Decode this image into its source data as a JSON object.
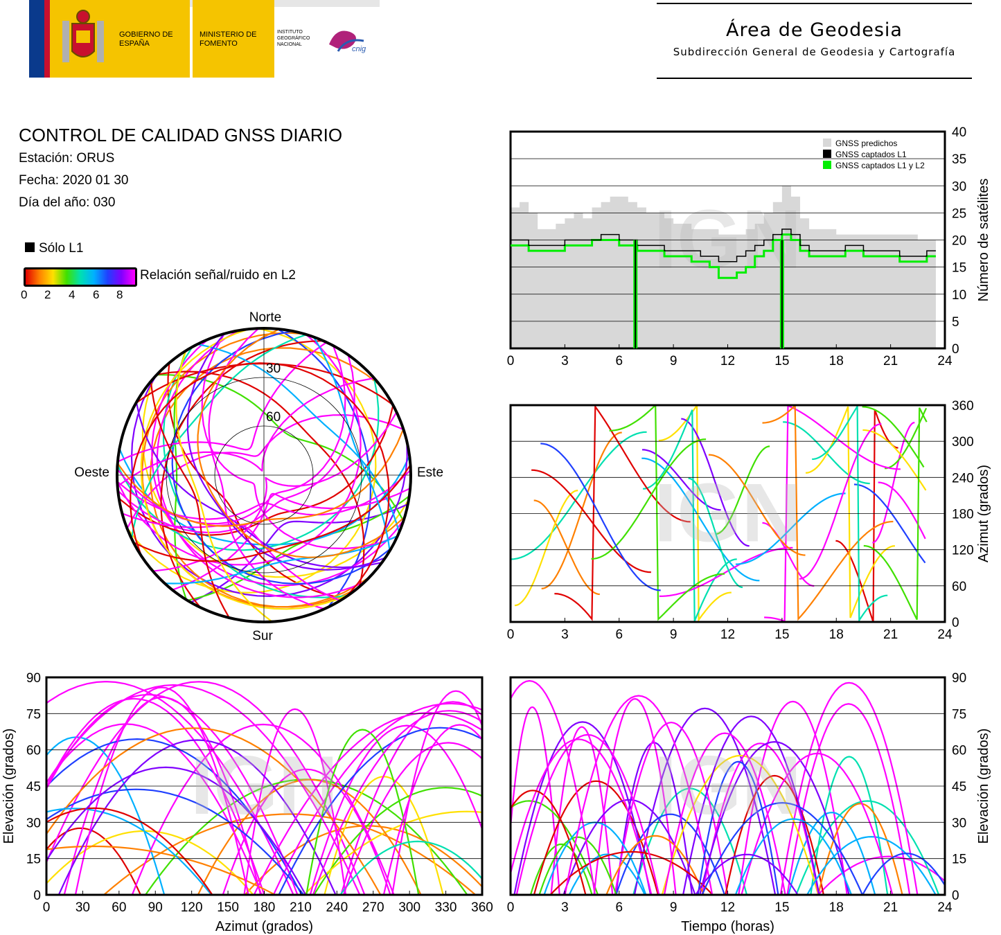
{
  "header": {
    "logo_gobierno": "GOBIERNO DE ESPAÑA",
    "logo_ministerio": "MINISTERIO DE FOMENTO",
    "logo_ign": "INSTITUTO GEOGRÁFICO NACIONAL",
    "logo_cnig": "cnig",
    "title": "Área de Geodesia",
    "subtitle": "Subdirección General de Geodesia y Cartografía"
  },
  "info": {
    "title": "CONTROL DE CALIDAD GNSS DIARIO",
    "station": "Estación: ORUS",
    "date": "Fecha: 2020 01 30",
    "doy": "Día del año: 030"
  },
  "legend": {
    "l1_only": "Sólo L1",
    "snr_label": "Relación señal/ruido en L2",
    "snr_ticks": [
      "0",
      "2",
      "4",
      "6",
      "8"
    ]
  },
  "watermark": "IGN",
  "colors": {
    "predicted": "#d8d8d8",
    "l1": "#000000",
    "l1l2": "#00ee00",
    "snr_scale": [
      "#e00000",
      "#ff8000",
      "#ffe000",
      "#40e000",
      "#00e0b0",
      "#00b0ff",
      "#2040ff",
      "#8000ff",
      "#ff00ff"
    ]
  },
  "chart_data": [
    {
      "type": "polar-scatter",
      "name": "skyplot",
      "directions": {
        "north": "Norte",
        "south": "Sur",
        "east": "Este",
        "west": "Oeste"
      },
      "elevation_rings": [
        "30",
        "60"
      ]
    },
    {
      "type": "area",
      "name": "satellite-count",
      "ylabel": "Número de satélites",
      "xlim": [
        0,
        24
      ],
      "ylim": [
        0,
        40
      ],
      "xticks": [
        "0",
        "3",
        "6",
        "9",
        "12",
        "15",
        "18",
        "21",
        "24"
      ],
      "yticks": [
        "0",
        "5",
        "10",
        "15",
        "20",
        "25",
        "30",
        "35",
        "40"
      ],
      "legend": [
        "GNSS predichos",
        "GNSS captados L1",
        "GNSS captados L1 y L2"
      ],
      "legend_position": "top-right",
      "x": [
        0,
        0.5,
        1,
        1.5,
        2,
        2.5,
        3,
        3.5,
        4,
        4.5,
        5,
        5.5,
        6,
        6.5,
        7,
        7.5,
        8,
        8.5,
        9,
        9.5,
        10,
        10.5,
        11,
        11.5,
        12,
        12.5,
        13,
        13.5,
        14,
        14.5,
        15,
        15.5,
        16,
        16.5,
        17,
        17.5,
        18,
        18.5,
        19,
        19.5,
        20,
        20.5,
        21,
        21.5,
        22,
        22.5,
        23
      ],
      "series": [
        {
          "name": "GNSS predichos",
          "values": [
            26,
            27,
            25,
            22,
            22,
            23,
            24,
            25,
            24,
            26,
            27,
            28,
            28,
            27,
            26,
            25,
            25,
            24,
            23,
            23,
            22,
            22,
            22,
            21,
            21,
            21,
            22,
            23,
            25,
            27,
            30,
            28,
            24,
            22,
            22,
            22,
            21,
            21,
            21,
            21,
            21,
            21,
            21,
            21,
            21,
            20,
            20
          ]
        },
        {
          "name": "GNSS captados L1",
          "values": [
            20,
            20,
            19,
            19,
            19,
            19,
            20,
            20,
            20,
            20,
            21,
            21,
            20,
            20,
            19,
            19,
            19,
            18,
            18,
            18,
            18,
            17,
            17,
            16,
            16,
            17,
            18,
            19,
            20,
            21,
            22,
            21,
            19,
            18,
            18,
            18,
            18,
            19,
            19,
            18,
            18,
            18,
            18,
            17,
            17,
            17,
            18
          ]
        },
        {
          "name": "GNSS captados L1 y L2",
          "values": [
            19,
            19,
            18,
            18,
            18,
            18,
            19,
            19,
            19,
            20,
            20,
            20,
            19,
            19,
            18,
            18,
            18,
            17,
            17,
            17,
            16,
            16,
            15,
            13,
            13,
            14,
            15,
            17,
            18,
            20,
            21,
            20,
            18,
            17,
            17,
            17,
            17,
            18,
            18,
            17,
            17,
            17,
            17,
            16,
            16,
            16,
            17
          ]
        }
      ],
      "dropouts": [
        6.9,
        15.0
      ]
    },
    {
      "type": "scatter",
      "name": "azimuth-vs-time",
      "ylabel": "Azimut (grados)",
      "xlim": [
        0,
        24
      ],
      "ylim": [
        0,
        360
      ],
      "xticks": [
        "0",
        "3",
        "6",
        "9",
        "12",
        "15",
        "18",
        "21",
        "24"
      ],
      "yticks": [
        "0",
        "60",
        "120",
        "180",
        "240",
        "300",
        "360"
      ]
    },
    {
      "type": "scatter",
      "name": "elevation-vs-azimuth",
      "xlabel": "Azimut (grados)",
      "ylabel": "Elevación (grados)",
      "xlim": [
        0,
        360
      ],
      "ylim": [
        0,
        90
      ],
      "xticks": [
        "0",
        "30",
        "60",
        "90",
        "120",
        "150",
        "180",
        "210",
        "240",
        "270",
        "300",
        "330",
        "360"
      ],
      "yticks": [
        "0",
        "15",
        "30",
        "45",
        "60",
        "75",
        "90"
      ]
    },
    {
      "type": "scatter",
      "name": "elevation-vs-time",
      "xlabel": "Tiempo (horas)",
      "ylabel": "Elevación (grados)",
      "xlim": [
        0,
        24
      ],
      "ylim": [
        0,
        90
      ],
      "xticks": [
        "0",
        "3",
        "6",
        "9",
        "12",
        "15",
        "18",
        "21",
        "24"
      ],
      "yticks": [
        "0",
        "15",
        "30",
        "45",
        "60",
        "75",
        "90"
      ]
    }
  ]
}
